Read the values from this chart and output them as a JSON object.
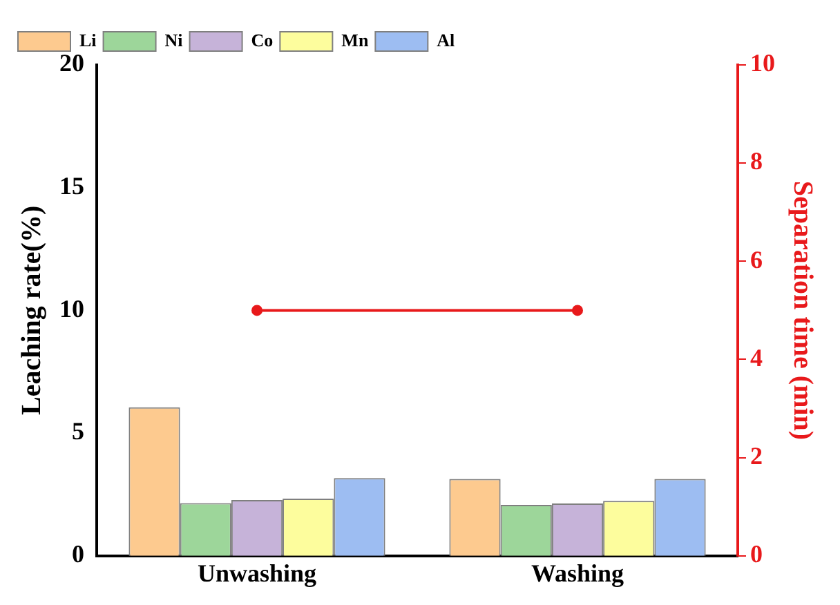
{
  "chart_data": {
    "type": "bar",
    "ylabel": "Leaching rate(%)",
    "y2label": "Separation time (min)",
    "categories": [
      "Unwashing",
      "Washing"
    ],
    "series": [
      {
        "name": "Li",
        "color": "#fdca8f",
        "values": [
          6.05,
          3.13
        ]
      },
      {
        "name": "Ni",
        "color": "#9dd69a",
        "values": [
          2.15,
          2.08
        ]
      },
      {
        "name": "Co",
        "color": "#c6b3d9",
        "values": [
          2.27,
          2.13
        ]
      },
      {
        "name": "Mn",
        "color": "#fdfd9d",
        "values": [
          2.33,
          2.24
        ]
      },
      {
        "name": "Al",
        "color": "#9dbdf2",
        "values": [
          3.17,
          3.13
        ]
      },
      {
        "type": "line",
        "axis": "y2",
        "color": "#e8191b",
        "values": [
          5,
          5
        ],
        "marker": "circle"
      }
    ],
    "ylim": [
      0,
      20
    ],
    "yticks": [
      0,
      5,
      10,
      15,
      20
    ],
    "y2lim": [
      0,
      10
    ],
    "y2ticks": [
      0,
      2,
      4,
      6,
      8,
      10
    ],
    "grid": false,
    "legend": "top left"
  }
}
